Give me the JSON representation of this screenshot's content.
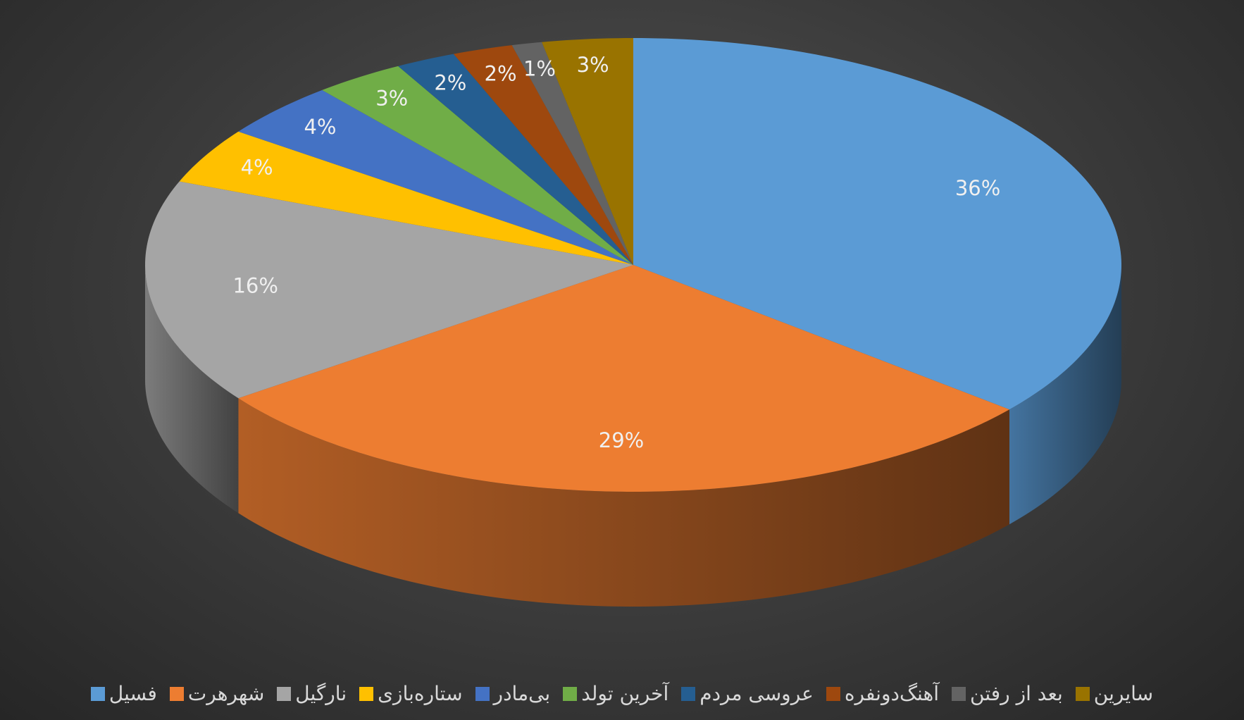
{
  "chart_data": {
    "type": "pie",
    "categories": [
      "فسيل",
      "شهرهرت",
      "نارگیل",
      "ستاره‌بازی",
      "بی‌مادر",
      "آخرین تولد",
      "عروسی مردم",
      "آهنگ‌دونفره",
      "بعد از رفتن",
      "سایرین"
    ],
    "values": [
      36,
      29,
      16,
      4,
      4,
      3,
      2,
      2,
      1,
      3
    ],
    "value_labels": [
      "36%",
      "29%",
      "16%",
      "4%",
      "4%",
      "3%",
      "2%",
      "2%",
      "1%",
      "3%"
    ],
    "colors": [
      "#5b9bd5",
      "#ed7d31",
      "#a5a5a5",
      "#ffc000",
      "#4472c4",
      "#70ad47",
      "#255e91",
      "#9e480e",
      "#636363",
      "#997300"
    ]
  }
}
